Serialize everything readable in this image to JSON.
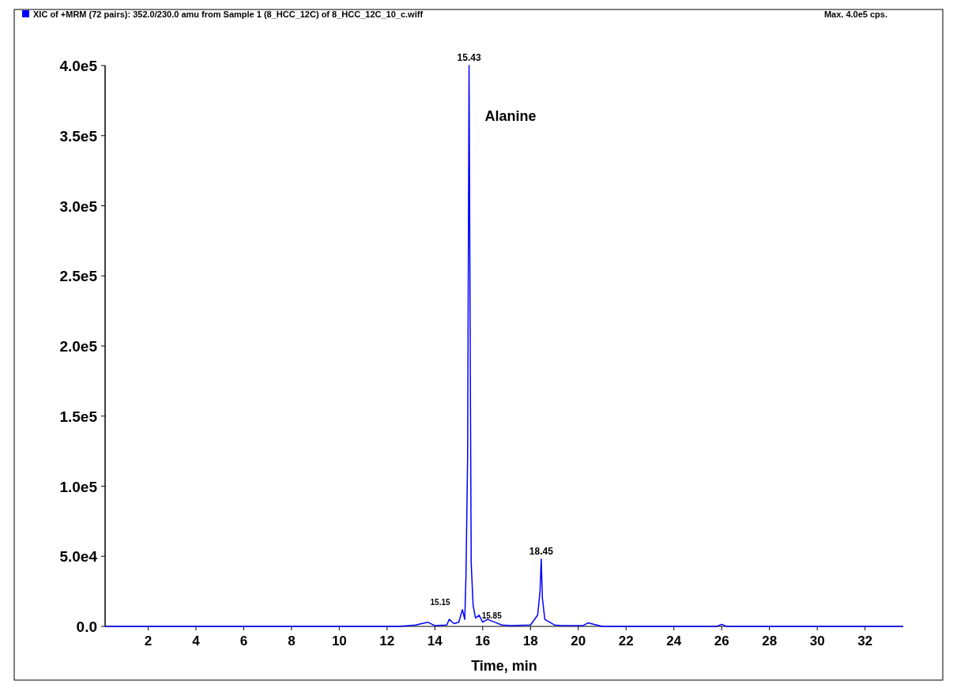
{
  "chart_data": {
    "type": "line",
    "xlabel": "Time, min",
    "legend": "top left",
    "xlim": [
      0.2,
      33.6
    ],
    "xticks": [
      2,
      4,
      6,
      8,
      10,
      12,
      14,
      16,
      18,
      20,
      22,
      24,
      26,
      28,
      30,
      32
    ],
    "ylim": [
      0,
      400000
    ],
    "yticks": [
      {
        "value": 0,
        "label": "0.0"
      },
      {
        "value": 50000,
        "label": "5.0e4"
      },
      {
        "value": 100000,
        "label": "1.0e5"
      },
      {
        "value": 150000,
        "label": "1.5e5"
      },
      {
        "value": 200000,
        "label": "2.0e5"
      },
      {
        "value": 250000,
        "label": "2.5e5"
      },
      {
        "value": 300000,
        "label": "3.0e5"
      },
      {
        "value": 350000,
        "label": "3.5e5"
      },
      {
        "value": 400000,
        "label": "4.0e5"
      }
    ],
    "series": [
      {
        "name": "XIC of +MRM (72 pairs): 352.0/230.0 amu from Sample 1 (8_HCC_12C) of 8_HCC_12C_10_c.wiff",
        "color": "#0000ff",
        "x": [
          0.2,
          2,
          6,
          10,
          12.5,
          13.2,
          13.7,
          14.0,
          14.5,
          14.6,
          14.8,
          15.0,
          15.15,
          15.25,
          15.3,
          15.37,
          15.43,
          15.48,
          15.52,
          15.6,
          15.7,
          15.85,
          16.0,
          16.2,
          16.5,
          16.8,
          17.2,
          18.0,
          18.3,
          18.4,
          18.45,
          18.5,
          18.6,
          18.8,
          19.0,
          19.3,
          20.2,
          20.4,
          21,
          25.8,
          26,
          26.2,
          33.6
        ],
        "values": [
          0,
          0,
          0,
          0,
          0,
          1000,
          3000,
          500,
          1000,
          5000,
          2000,
          3000,
          12000,
          5000,
          35000,
          120000,
          400000,
          195000,
          45000,
          15000,
          6000,
          8000,
          3000,
          5000,
          3000,
          1000,
          500,
          1000,
          8000,
          25000,
          48000,
          20000,
          5000,
          3000,
          1000,
          500,
          500,
          2500,
          0,
          0,
          1500,
          0,
          0
        ]
      }
    ],
    "annotations": [
      "Alanine",
      "Max. 4.0e5 cps.",
      {
        "text": "15.43",
        "x": 15.43,
        "y": 400000
      },
      {
        "text": "15.15",
        "x": 15.15,
        "y": 12000
      },
      {
        "text": "15.85",
        "x": 15.85,
        "y": 8000
      },
      {
        "text": "18.45",
        "x": 18.45,
        "y": 48000
      }
    ]
  }
}
